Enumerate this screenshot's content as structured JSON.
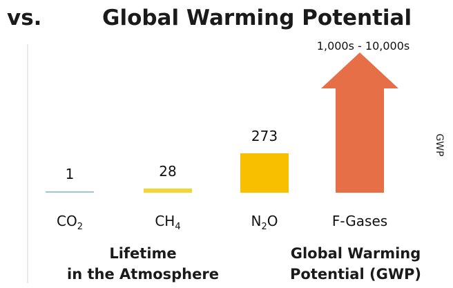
{
  "heading": {
    "vs_label": "vs.",
    "title": "Global Warming Potential"
  },
  "chart_data": {
    "type": "bar",
    "categories": [
      {
        "base": "CO",
        "sub": "2"
      },
      {
        "base": "CH",
        "sub": "4"
      },
      {
        "base": "N",
        "sub": "2",
        "tail": "O"
      },
      {
        "base": "F-Gases"
      }
    ],
    "values": [
      1,
      28,
      273,
      10000
    ],
    "value_labels": [
      "1",
      "28",
      "273",
      "1,000s - 10,000s"
    ],
    "colors": [
      "#9cc7d8",
      "#f2d632",
      "#f8bf00",
      "#e66f48"
    ],
    "ylabel": "GWP",
    "scale_note": "non-linear; F-Gases shown as an upward arrow"
  },
  "footer": {
    "left": [
      "Lifetime",
      "in the Atmosphere"
    ],
    "right": [
      "Global Warming",
      "Potential (GWP)"
    ]
  }
}
